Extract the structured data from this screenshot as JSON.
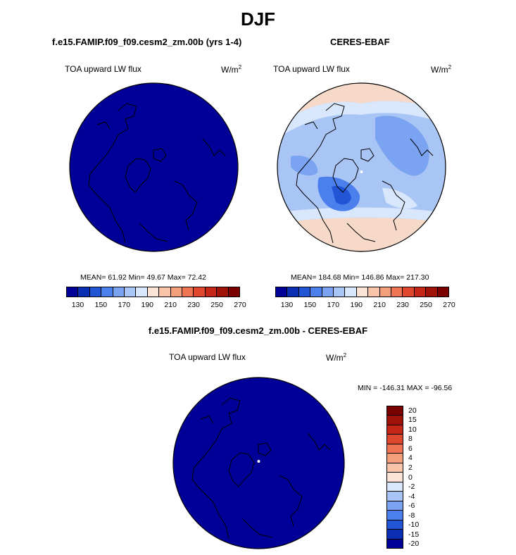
{
  "title": "DJF",
  "panels": {
    "model": {
      "title": "f.e15.FAMIP.f09_f09.cesm2_zm.00b (yrs 1-4)",
      "variable": "TOA upward LW flux",
      "units_base": "W/m",
      "units_exp": "2",
      "stats": "MEAN= 61.92  Min= 49.67  Max= 72.42",
      "fill_color": "#000099"
    },
    "obs": {
      "title": "CERES-EBAF",
      "variable": "TOA upward LW flux",
      "units_base": "W/m",
      "units_exp": "2",
      "stats": "MEAN= 184.68  Min= 146.86  Max= 217.30"
    },
    "diff": {
      "title": "f.e15.FAMIP.f09_f09.cesm2_zm.00b - CERES-EBAF",
      "variable": "TOA upward LW flux",
      "units_base": "W/m",
      "units_exp": "2",
      "minmax": "MIN = -146.31 MAX = -96.56",
      "fill_color": "#000099"
    }
  },
  "colorbar_top": {
    "colors": [
      "#000099",
      "#0b2fb4",
      "#2255d6",
      "#4a7fec",
      "#7aa3f2",
      "#a9c5f6",
      "#d8e7fb",
      "#fbe4d6",
      "#f9c4a9",
      "#f49f7c",
      "#ee7454",
      "#e0472f",
      "#c42718",
      "#9e1208",
      "#7a0000"
    ],
    "ticks": [
      "130",
      "150",
      "170",
      "190",
      "210",
      "230",
      "250",
      "270"
    ]
  },
  "colorbar_diff": {
    "colors": [
      "#7a0000",
      "#9e1208",
      "#c42718",
      "#e0472f",
      "#ee7454",
      "#f49f7c",
      "#f9c4a9",
      "#fbe4d6",
      "#d8e7fb",
      "#a9c5f6",
      "#7aa3f2",
      "#4a7fec",
      "#2255d6",
      "#0b2fb4",
      "#000099"
    ],
    "ticks": [
      "20",
      "15",
      "10",
      "8",
      "6",
      "4",
      "2",
      "0",
      "-2",
      "-4",
      "-6",
      "-8",
      "-10",
      "-15",
      "-20"
    ]
  }
}
